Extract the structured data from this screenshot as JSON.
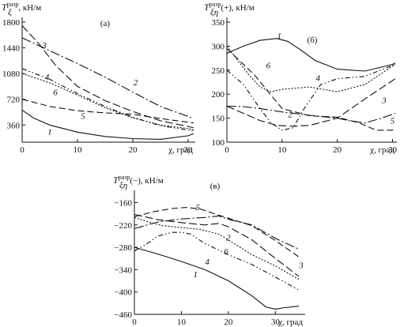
{
  "chart_data": [
    {
      "type": "line",
      "panel_label": "(а)",
      "ylabel_main": "T",
      "ylabel_sub": "ξ",
      "ylabel_sup": "разр",
      "ylabel_tail": ", кН/м",
      "xlabel": "χ, град",
      "xlim": [
        0,
        31
      ],
      "ylim": [
        120,
        1800
      ],
      "xticks": [
        0,
        10,
        20,
        30
      ],
      "yticks": [
        360,
        720,
        1080,
        1440,
        1800
      ],
      "series": [
        {
          "name": "1",
          "dash": "",
          "label_at": [
            5,
            270
          ],
          "x": [
            0,
            2,
            5,
            10,
            15,
            20,
            25,
            30,
            31
          ],
          "y": [
            570,
            460,
            360,
            260,
            200,
            170,
            160,
            210,
            240
          ]
        },
        {
          "name": "2",
          "dash": "12,3,2,3",
          "label_at": [
            20.5,
            960
          ],
          "x": [
            0,
            5,
            10,
            15,
            20,
            25,
            30,
            31
          ],
          "y": [
            1580,
            1400,
            1220,
            1030,
            820,
            620,
            480,
            450
          ]
        },
        {
          "name": "3",
          "dash": "10,4",
          "label_at": [
            4,
            1480
          ],
          "x": [
            0,
            3,
            6,
            10,
            15,
            20,
            25,
            30,
            31
          ],
          "y": [
            1750,
            1500,
            1200,
            900,
            700,
            550,
            420,
            340,
            320
          ]
        },
        {
          "name": "4",
          "dash": "6,3,1.5,3,1.5,3",
          "label_at": [
            4.5,
            1040
          ],
          "x": [
            0,
            5,
            10,
            15,
            20,
            25,
            30,
            31
          ],
          "y": [
            1150,
            1000,
            800,
            620,
            470,
            350,
            290,
            280
          ]
        },
        {
          "name": "5",
          "dash": "8,4",
          "label_at": [
            11,
            490
          ],
          "x": [
            0,
            5,
            10,
            15,
            20,
            25,
            30,
            31
          ],
          "y": [
            720,
            620,
            560,
            530,
            510,
            450,
            400,
            390
          ]
        },
        {
          "name": "6",
          "dash": "2,2",
          "label_at": [
            6,
            820
          ],
          "x": [
            0,
            5,
            10,
            15,
            20,
            25,
            30,
            31
          ],
          "y": [
            1080,
            950,
            780,
            600,
            460,
            360,
            310,
            290
          ]
        }
      ]
    },
    {
      "type": "line",
      "panel_label": "(б)",
      "ylabel_main": "T",
      "ylabel_sub": "ξη",
      "ylabel_sup": "разр",
      "ylabel_tail": "(+), кН/м",
      "xlabel": "χ, град",
      "xlim": [
        0,
        30.5
      ],
      "ylim": [
        100,
        350
      ],
      "xticks": [
        0,
        10,
        20,
        30
      ],
      "yticks": [
        100,
        150,
        200,
        250,
        300,
        350
      ],
      "series": [
        {
          "name": "1",
          "dash": "",
          "label_at": [
            9.5,
            322
          ],
          "x": [
            0,
            3,
            6,
            9,
            11,
            13,
            16,
            20,
            25,
            30,
            30.5
          ],
          "y": [
            285,
            300,
            312,
            316,
            310,
            295,
            270,
            252,
            248,
            262,
            265
          ]
        },
        {
          "name": "2",
          "dash": "12,3,2,3",
          "label_at": [
            11.5,
            158
          ],
          "x": [
            0,
            3,
            6,
            10,
            15,
            20,
            22,
            25,
            28,
            30.5
          ],
          "y": [
            175,
            174,
            170,
            163,
            156,
            150,
            145,
            140,
            150,
            160
          ]
        },
        {
          "name": "3",
          "dash": "10,4",
          "label_at": [
            28.5,
            188
          ],
          "x": [
            0,
            3,
            6,
            9,
            12,
            15,
            20,
            25,
            30.5
          ],
          "y": [
            175,
            160,
            145,
            135,
            133,
            135,
            150,
            190,
            232
          ]
        },
        {
          "name": "4",
          "dash": "6,3,1.5,3,1.5,3",
          "label_at": [
            16.5,
            234
          ],
          "x": [
            0,
            3,
            6,
            8,
            10,
            12,
            14,
            17,
            20,
            25,
            30.5
          ],
          "y": [
            250,
            220,
            170,
            140,
            125,
            130,
            170,
            220,
            232,
            237,
            262
          ]
        },
        {
          "name": "5",
          "dash": "8,4",
          "label_at": [
            30,
            145
          ],
          "x": [
            0,
            5,
            10,
            15,
            20,
            24,
            27,
            30,
            30.5
          ],
          "y": [
            295,
            240,
            170,
            155,
            152,
            140,
            125,
            125,
            128
          ]
        },
        {
          "name": "6",
          "dash": "2,2",
          "label_at": [
            7.5,
            260
          ],
          "x": [
            0,
            2,
            4,
            6,
            8,
            10,
            15,
            20,
            25,
            30.5
          ],
          "y": [
            300,
            270,
            240,
            215,
            205,
            210,
            215,
            205,
            220,
            262
          ]
        }
      ]
    },
    {
      "type": "line",
      "panel_label": "(в)",
      "ylabel_main": "T",
      "ylabel_sub": "ξη",
      "ylabel_sup": "разр",
      "ylabel_tail": "(−), кН/м",
      "xlabel": "χ, град",
      "xlim": [
        0,
        36
      ],
      "ylim": [
        -460,
        -140
      ],
      "xticks": [
        0,
        10,
        20,
        30
      ],
      "yticks": [
        -460,
        -400,
        -340,
        -280,
        -220,
        -160
      ],
      "series": [
        {
          "name": "1",
          "dash": "",
          "label_at": [
            13,
            -352
          ],
          "x": [
            0,
            5,
            10,
            15,
            20,
            25,
            28,
            30,
            32,
            35
          ],
          "y": [
            -280,
            -298,
            -318,
            -340,
            -370,
            -410,
            -440,
            -446,
            -442,
            -438
          ]
        },
        {
          "name": "2",
          "dash": "12,3,2,3",
          "label_at": [
            20,
            -253
          ],
          "x": [
            0,
            5,
            10,
            15,
            18,
            20,
            25,
            30,
            35
          ],
          "y": [
            -230,
            -212,
            -204,
            -200,
            -196,
            -205,
            -220,
            -256,
            -285
          ]
        },
        {
          "name": "3",
          "dash": "10,4",
          "label_at": [
            35.5,
            -328
          ],
          "x": [
            0,
            5,
            10,
            15,
            18,
            20,
            25,
            30,
            35
          ],
          "y": [
            -192,
            -206,
            -214,
            -220,
            -216,
            -225,
            -260,
            -310,
            -358
          ]
        },
        {
          "name": "4",
          "dash": "6,3,1.5,3,1.5,3",
          "label_at": [
            15.5,
            -318
          ],
          "x": [
            0,
            3,
            5,
            8,
            10,
            12,
            15,
            20,
            25,
            30,
            35
          ],
          "y": [
            -290,
            -268,
            -250,
            -240,
            -240,
            -245,
            -270,
            -300,
            -326,
            -360,
            -395
          ]
        },
        {
          "name": "5",
          "dash": "8,4",
          "label_at": [
            13.5,
            -172
          ],
          "x": [
            0,
            4,
            8,
            11,
            14,
            17,
            20,
            25,
            30,
            35
          ],
          "y": [
            -198,
            -185,
            -176,
            -173,
            -177,
            -190,
            -202,
            -222,
            -262,
            -306
          ]
        },
        {
          "name": "6",
          "dash": "2,2",
          "label_at": [
            19.5,
            -290
          ],
          "x": [
            0,
            3,
            6,
            10,
            14,
            18,
            21,
            25,
            30,
            35
          ],
          "y": [
            -200,
            -212,
            -222,
            -227,
            -232,
            -245,
            -268,
            -300,
            -330,
            -366
          ]
        }
      ]
    }
  ]
}
